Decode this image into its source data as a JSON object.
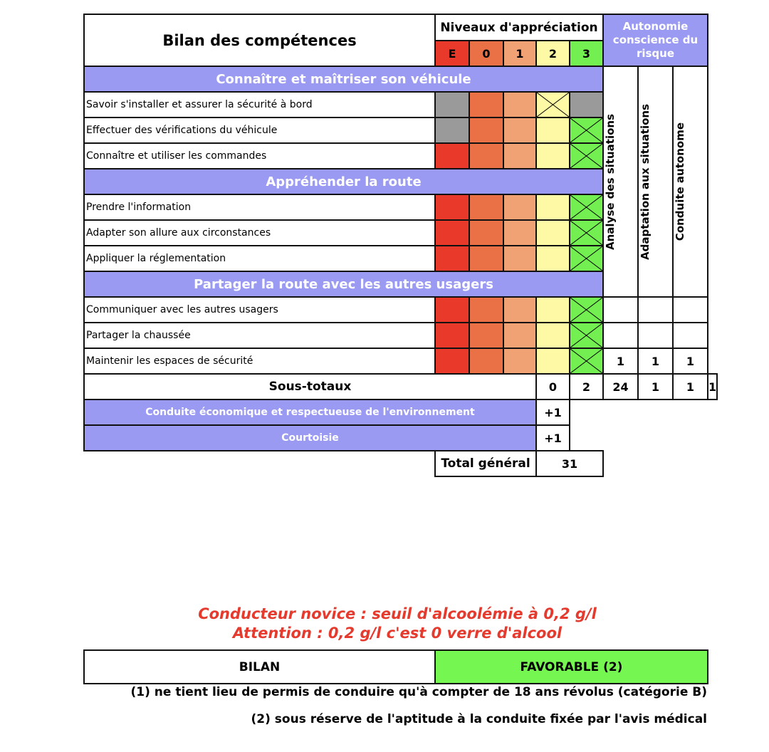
{
  "title": "Bilan des compétences",
  "levels_header": "Niveaux d'appréciation",
  "levels": [
    "E",
    "0",
    "1",
    "2",
    "3"
  ],
  "autonomy_header": "Autonomie conscience du risque",
  "autonomy_columns": [
    "Analyse des situations",
    "Adaptation aux situations",
    "Conduite autonome"
  ],
  "colors": {
    "E": "#e8392b",
    "0": "#ea7046",
    "1": "#f0a274",
    "2": "#fdf9a4",
    "3": "#74ef51",
    "grey": "#9a9a9a",
    "section": "#9a9af2",
    "favorable": "#76f650",
    "warning": "#e53a2e"
  },
  "sections": [
    {
      "title": "Connaître et maîtriser son véhicule",
      "rows": [
        {
          "label": "Savoir s'installer et assurer la sécurité à bord",
          "checked": "2",
          "grey": [
            "E",
            "3"
          ]
        },
        {
          "label": "Effectuer des vérifications du véhicule",
          "checked": "3",
          "grey": [
            "E"
          ]
        },
        {
          "label": "Connaître et utiliser les commandes",
          "checked": "3",
          "grey": []
        }
      ]
    },
    {
      "title": "Appréhender la route",
      "rows": [
        {
          "label": "Prendre l'information",
          "checked": "3",
          "grey": []
        },
        {
          "label": "Adapter son allure aux circonstances",
          "checked": "3",
          "grey": []
        },
        {
          "label": "Appliquer la réglementation",
          "checked": "3",
          "grey": []
        }
      ]
    },
    {
      "title": "Partager la route avec les autres usagers",
      "rows": [
        {
          "label": "Communiquer avec les autres usagers",
          "checked": "3",
          "grey": [],
          "autonomy": [
            "",
            "",
            ""
          ]
        },
        {
          "label": "Partager la chaussée",
          "checked": "3",
          "grey": [],
          "autonomy": [
            "",
            "",
            ""
          ]
        },
        {
          "label": "Maintenir les espaces de sécurité",
          "checked": "3",
          "grey": [],
          "autonomy": [
            "1",
            "1",
            "1"
          ]
        }
      ]
    }
  ],
  "subtotals": {
    "label": "Sous-totaux",
    "values": [
      "0",
      "2",
      "24",
      "1",
      "1",
      "1"
    ]
  },
  "bonus": [
    {
      "label": "Conduite économique et respectueuse de l'environnement",
      "value": "+1"
    },
    {
      "label": "Courtoisie",
      "value": "+1"
    }
  ],
  "total": {
    "label": "Total général",
    "value": "31"
  },
  "warning": [
    "Conducteur novice : seuil d'alcoolémie à 0,2 g/l",
    "Attention : 0,2 g/l c'est 0 verre d'alcool"
  ],
  "bilan": {
    "label": "BILAN",
    "value": "FAVORABLE (2)"
  },
  "notes": [
    "(1) ne tient lieu de permis de conduire qu'à compter de 18 ans révolus (catégorie B)",
    "(2) sous réserve de l'aptitude à la conduite fixée par l'avis médical"
  ]
}
